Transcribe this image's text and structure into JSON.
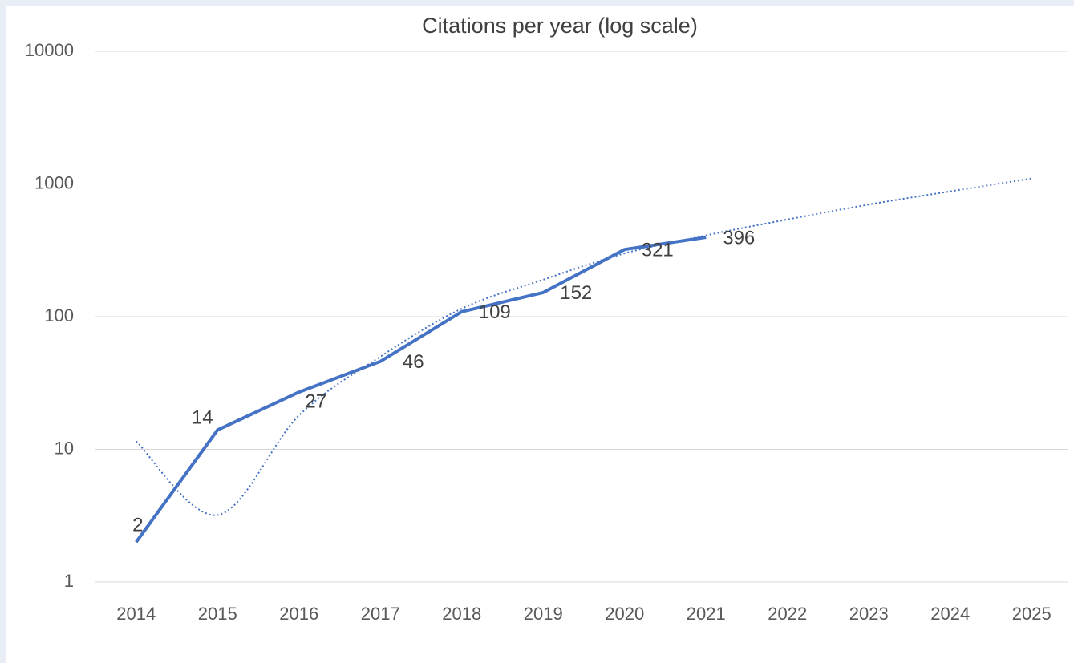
{
  "chart_data": {
    "type": "line",
    "title": "Citations per year (log scale)",
    "categories": [
      "2014",
      "2015",
      "2016",
      "2017",
      "2018",
      "2019",
      "2020",
      "2021",
      "2022",
      "2023",
      "2024",
      "2025"
    ],
    "series": [
      {
        "color": "#4472c4",
        "values": [
          2,
          14,
          27,
          46,
          109,
          152,
          321,
          396,
          null,
          null,
          null,
          null
        ]
      }
    ],
    "trendline": {
      "color": "#4472c4",
      "values": [
        11.5,
        3.2,
        18,
        50,
        115,
        190,
        300,
        410,
        540,
        700,
        880,
        1100
      ]
    },
    "ylim": [
      1,
      10000
    ],
    "yticks": [
      1,
      10,
      100,
      1000,
      10000
    ],
    "log_scale": true,
    "grid": true
  }
}
